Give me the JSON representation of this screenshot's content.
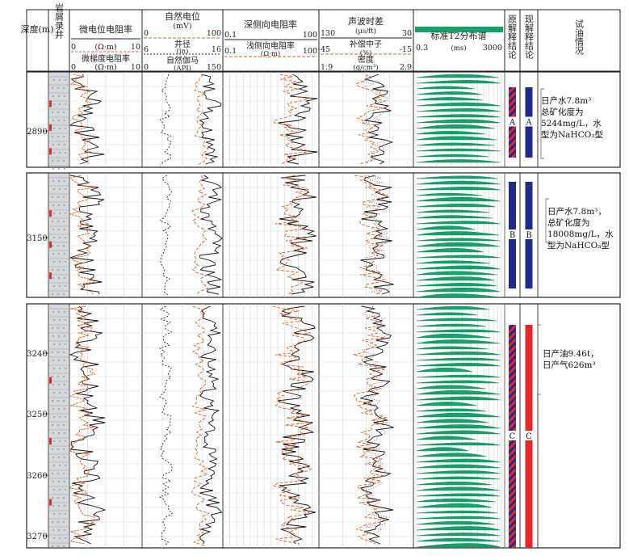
{
  "columns": {
    "depth": "深度(m)",
    "lith": "岩屑录井",
    "micro": "微电位电阻率",
    "sp": "自然电位",
    "lld": "深侧向电阻率",
    "ac": "声波时差",
    "nmr": "标准T2分布谱",
    "orig": "原解释结论",
    "curr": "现解释结论",
    "test": "试油情况"
  },
  "scales": {
    "micro_unit": "(Ω·m)",
    "micro_lo": "0",
    "micro_hi": "10",
    "mg_label": "微梯度电阻率",
    "mg_unit": "(Ω·m)",
    "mg_lo": "0",
    "mg_hi": "10",
    "sp_unit": "(mV)",
    "sp_lo": "0",
    "sp_hi": "100",
    "cal_label": "井径",
    "cal_unit": "(in)",
    "cal_lo": "6",
    "cal_hi": "16",
    "gr_label": "自然伽马",
    "gr_unit": "(API)",
    "gr_lo": "0",
    "gr_hi": "150",
    "lld_unit": "(Ω·m)",
    "lld_lo": "0.1",
    "lld_hi": "100",
    "lls_label": "浅侧向电阻率",
    "lls_unit": "(Ω·m)",
    "lls_lo": "0.1",
    "lls_hi": "100",
    "ac_unit": "(μs/ft)",
    "ac_lo": "130",
    "ac_hi": "30",
    "cnl_label": "补偿中子",
    "cnl_unit": "(%)",
    "cnl_lo": "45",
    "cnl_hi": "-15",
    "den_label": "密度",
    "den_unit": "(g/cm³)",
    "den_lo": "1.9",
    "den_hi": "2.9",
    "nmr_lo": "0.3",
    "nmr_unit": "(ms)",
    "nmr_hi": "3000"
  },
  "depth_ticks": {
    "p1": [
      "2890"
    ],
    "p2": [
      "3150"
    ],
    "p3": [
      "3240",
      "3250",
      "3260",
      "3270"
    ]
  },
  "zones": {
    "p1_orig": "A",
    "p1_curr": "A",
    "p2_orig": "B",
    "p2_curr": "B",
    "p3_orig": "C",
    "p3_curr": "C"
  },
  "tests": {
    "p1": [
      "日产水7.8m³",
      "总矿化度为",
      "5244mg/L，水",
      "型为NaHCO₃型"
    ],
    "p2": [
      "日产水7.8m³，",
      "总矿化度为",
      "18008mg/L，水",
      "型为NaHCO₃型"
    ],
    "p3": [
      "日产油9.46t，",
      "日产气626m³"
    ]
  },
  "colors": {
    "water": "#1e2a8c",
    "oil": "#e8262a",
    "nmr": "#12a36a",
    "orange": "#e0602a",
    "lith": "#d5d8dd"
  }
}
